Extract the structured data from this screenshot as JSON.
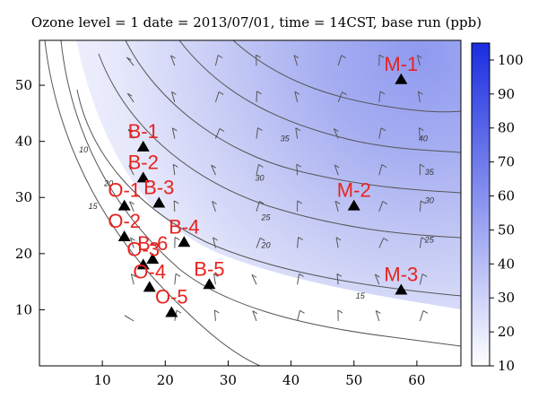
{
  "chart_data": {
    "type": "heatmap",
    "title": "Ozone level = 1 date = 2013/07/01, time = 14CST, base run (ppb)",
    "xlim": [
      0,
      67
    ],
    "ylim": [
      0,
      58
    ],
    "xticks": [
      10,
      20,
      30,
      40,
      50,
      60
    ],
    "yticks": [
      10,
      20,
      30,
      40,
      50
    ],
    "colorbar": {
      "ticks": [
        10,
        20,
        30,
        40,
        50,
        60,
        70,
        80,
        90,
        100
      ],
      "range": [
        10,
        105
      ],
      "low_color": "#ffffff",
      "high_color": "#1a2de0"
    },
    "contour_labels": [
      {
        "text": "10",
        "x": 7,
        "y": 38
      },
      {
        "text": "15",
        "x": 8.5,
        "y": 28
      },
      {
        "text": "20",
        "x": 11,
        "y": 32
      },
      {
        "text": "15",
        "x": 51,
        "y": 12
      },
      {
        "text": "20",
        "x": 36,
        "y": 21
      },
      {
        "text": "25",
        "x": 36,
        "y": 26
      },
      {
        "text": "30",
        "x": 35,
        "y": 33
      },
      {
        "text": "35",
        "x": 39,
        "y": 40
      },
      {
        "text": "40",
        "x": 61,
        "y": 40
      },
      {
        "text": "35",
        "x": 62,
        "y": 34
      },
      {
        "text": "30",
        "x": 62,
        "y": 29
      },
      {
        "text": "25",
        "x": 62,
        "y": 22
      }
    ],
    "sites": [
      {
        "name": "M-1",
        "x": 57.5,
        "y": 51
      },
      {
        "name": "B-1",
        "x": 16.5,
        "y": 39
      },
      {
        "name": "B-2",
        "x": 16.5,
        "y": 33.5
      },
      {
        "name": "O-1",
        "x": 13.5,
        "y": 28.5
      },
      {
        "name": "B-3",
        "x": 19,
        "y": 29
      },
      {
        "name": "M-2",
        "x": 50,
        "y": 28.5
      },
      {
        "name": "O-2",
        "x": 13.5,
        "y": 23
      },
      {
        "name": "B-4",
        "x": 23,
        "y": 22
      },
      {
        "name": "B-6",
        "x": 18,
        "y": 19
      },
      {
        "name": "O-3",
        "x": 16.5,
        "y": 18
      },
      {
        "name": "O-4",
        "x": 17.5,
        "y": 14
      },
      {
        "name": "B-5",
        "x": 27,
        "y": 14.5
      },
      {
        "name": "M-3",
        "x": 57.5,
        "y": 13.5
      },
      {
        "name": "O-5",
        "x": 21,
        "y": 9.5
      }
    ]
  }
}
